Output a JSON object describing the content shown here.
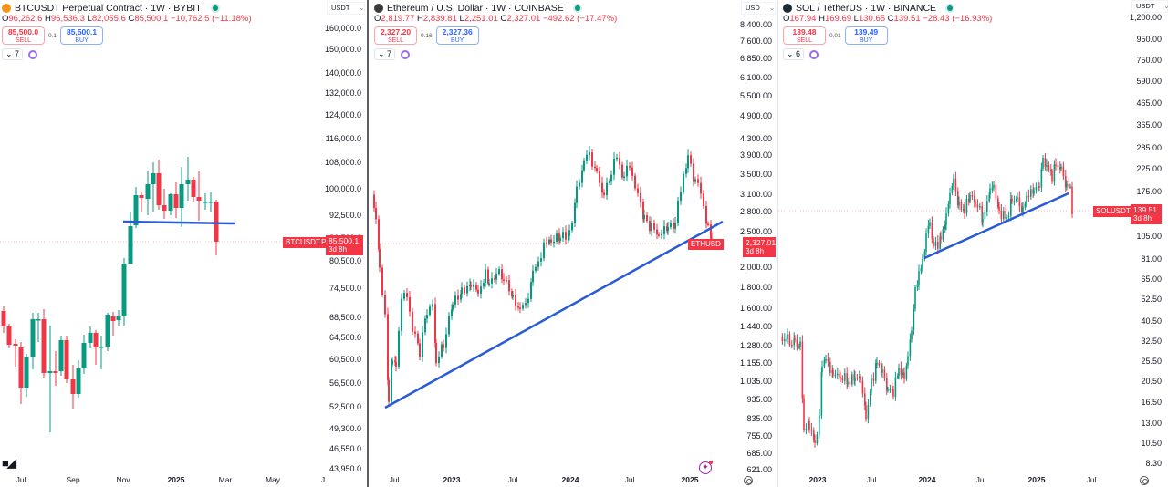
{
  "colors": {
    "up": "#089981",
    "down": "#f23645",
    "trendline": "#2a5bd7",
    "buy": "#2962ff",
    "sell": "#f23645",
    "divider": "#5d606b"
  },
  "panes": [
    {
      "id": "btc",
      "title": "BTCUSDT Perpetual Contract · 1W · BYBIT",
      "ohlc": {
        "o_label": "O",
        "o": "96,262.6",
        "h_label": "H",
        "h": "96,536.3",
        "l_label": "L",
        "l": "82,055.6",
        "c_label": "C",
        "c": "85,500.1",
        "change": "−10,762.5 (−11.18%)"
      },
      "sell": {
        "price": "85,500.0",
        "label": "SELL"
      },
      "buy": {
        "price": "85,500.1",
        "label": "BUY"
      },
      "spread": "0.1",
      "indicators_count": "7",
      "currency": "USDT",
      "price_ticks": [
        "160,000.0",
        "150,000.0",
        "140,000.0",
        "132,000.0",
        "124,000.0",
        "116,000.0",
        "108,000.0",
        "100,000.0",
        "92,500.0",
        "86,500.0",
        "80,500.0",
        "74,500.0",
        "68,500.0",
        "64,500.0",
        "60,500.0",
        "56,500.0",
        "52,500.0",
        "49,300.0",
        "46,550.0",
        "43,950.0"
      ],
      "time_labels": [
        "Jul",
        "Sep",
        "Nov",
        "2025",
        "Mar",
        "May",
        "J"
      ],
      "symbol_tag": "BTCUSDT.P",
      "last_price": "85,500.1",
      "countdown": "3d 8h"
    },
    {
      "id": "eth",
      "title": "Ethereum / U.S. Dollar · 1W · COINBASE",
      "ohlc": {
        "o_label": "O",
        "o": "2,819.77",
        "h_label": "H",
        "h": "2,839.81",
        "l_label": "L",
        "l": "2,251.01",
        "c_label": "C",
        "c": "2,327.01",
        "change": "−492.62 (−17.47%)"
      },
      "sell": {
        "price": "2,327.20",
        "label": "SELL"
      },
      "buy": {
        "price": "2,327.36",
        "label": "BUY"
      },
      "spread": "0.16",
      "indicators_count": "7",
      "currency": "USD",
      "price_ticks": [
        "8,400.00",
        "7,600.00",
        "6,850.00",
        "6,100.00",
        "5,500.00",
        "4,900.00",
        "4,300.00",
        "3,900.00",
        "3,500.00",
        "3,100.00",
        "2,800.00",
        "2,500.00",
        "2,000.00",
        "1,800.00",
        "1,600.00",
        "1,440.00",
        "1,280.00",
        "1,155.00",
        "1,035.00",
        "935.00",
        "835.00",
        "755.00",
        "685.00",
        "621.00"
      ],
      "time_labels": [
        "Jul",
        "2023",
        "Jul",
        "2024",
        "Jul",
        "2025"
      ],
      "symbol_tag": "ETHUSD",
      "last_price": "2,327.01",
      "countdown": "3d 8h"
    },
    {
      "id": "sol",
      "title": "SOL / TetherUS · 1W · BINANCE",
      "ohlc": {
        "o_label": "O",
        "o": "167.94",
        "h_label": "H",
        "h": "169.69",
        "l_label": "L",
        "l": "130.65",
        "c_label": "C",
        "c": "139.51",
        "change": "−28.43 (−16.93%)"
      },
      "sell": {
        "price": "139.48",
        "label": "SELL"
      },
      "buy": {
        "price": "139.49",
        "label": "BUY"
      },
      "spread": "0.01",
      "indicators_count": "6",
      "currency": "USDT",
      "price_ticks": [
        "1,200.00",
        "950.00",
        "750.00",
        "590.00",
        "465.00",
        "365.00",
        "285.00",
        "225.00",
        "175.00",
        "105.00",
        "81.00",
        "65.00",
        "52.50",
        "40.50",
        "32.50",
        "25.50",
        "20.50",
        "16.50",
        "13.00",
        "10.50",
        "8.30"
      ],
      "time_labels": [
        "2023",
        "Jul",
        "2024",
        "Jul",
        "2025",
        "Jul"
      ],
      "symbol_tag": "SOLUSDT",
      "last_price": "139.51",
      "countdown": "3d 8h"
    }
  ],
  "chart_data": [
    {
      "type": "candlestick",
      "title": "BTCUSDT Perpetual Contract · 1W · BYBIT",
      "xlabel": "",
      "ylabel": "USDT",
      "y_scale": "log",
      "ylim": [
        43950,
        160000
      ],
      "x_ticks": [
        "Jul",
        "Sep",
        "Nov",
        "2025",
        "Mar",
        "May",
        "J"
      ],
      "y_ticks": [
        160000,
        150000,
        140000,
        132000,
        124000,
        116000,
        108000,
        100000,
        92500,
        86500,
        80500,
        74500,
        68500,
        64500,
        60500,
        56500,
        52500,
        49300,
        46550,
        43950
      ],
      "last": {
        "open": 96262.6,
        "high": 96536.3,
        "low": 82055.6,
        "close": 85500.1,
        "change": -10762.5,
        "change_pct": -11.18
      },
      "annotations": [
        {
          "type": "horizontal_support_line",
          "price": 91000,
          "color": "#2a5bd7"
        },
        {
          "type": "last_price_line",
          "price": 85500.1
        }
      ],
      "grid": false,
      "legend_position": "top-left"
    },
    {
      "type": "candlestick",
      "title": "Ethereum / U.S. Dollar · 1W · COINBASE",
      "xlabel": "",
      "ylabel": "USD",
      "y_scale": "log",
      "ylim": [
        621,
        8400
      ],
      "x_ticks": [
        "Jul",
        "2023",
        "Jul",
        "2024",
        "Jul",
        "2025"
      ],
      "y_ticks": [
        8400,
        7600,
        6850,
        6100,
        5500,
        4900,
        4300,
        3900,
        3500,
        3100,
        2800,
        2500,
        2000,
        1800,
        1600,
        1440,
        1280,
        1155,
        1035,
        935,
        835,
        755,
        685,
        621
      ],
      "last": {
        "open": 2819.77,
        "high": 2839.81,
        "low": 2251.01,
        "close": 2327.01,
        "change": -492.62,
        "change_pct": -17.47
      },
      "annotations": [
        {
          "type": "ascending_trendline",
          "from": {
            "x": "2022-06",
            "price": 900
          },
          "to": {
            "x": "2025-03",
            "price": 2700
          },
          "color": "#2a5bd7"
        }
      ],
      "grid": false,
      "legend_position": "top-left"
    },
    {
      "type": "candlestick",
      "title": "SOL / TetherUS · 1W · BINANCE",
      "xlabel": "",
      "ylabel": "USDT",
      "y_scale": "log",
      "ylim": [
        8.3,
        1200
      ],
      "x_ticks": [
        "2023",
        "Jul",
        "2024",
        "Jul",
        "2025",
        "Jul"
      ],
      "y_ticks": [
        1200,
        950,
        750,
        590,
        465,
        365,
        285,
        225,
        175,
        105,
        81,
        65,
        52.5,
        40.5,
        32.5,
        25.5,
        20.5,
        16.5,
        13,
        10.5,
        8.3
      ],
      "last": {
        "open": 167.94,
        "high": 169.69,
        "low": 130.65,
        "close": 139.51,
        "change": -28.43,
        "change_pct": -16.93
      },
      "annotations": [
        {
          "type": "ascending_trendline",
          "from": {
            "x": "2023-12",
            "price": 72
          },
          "to": {
            "x": "2025-03",
            "price": 175
          },
          "color": "#2a5bd7"
        }
      ],
      "grid": false,
      "legend_position": "top-left"
    }
  ]
}
